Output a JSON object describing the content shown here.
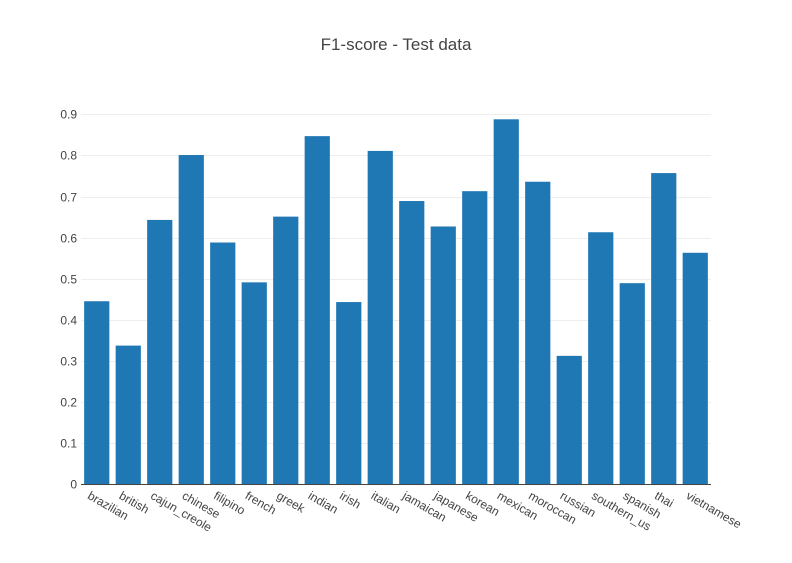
{
  "chart_data": {
    "type": "bar",
    "title": "F1-score - Test data",
    "xlabel": "",
    "ylabel": "",
    "categories": [
      "brazilian",
      "british",
      "cajun_creole",
      "chinese",
      "filipino",
      "french",
      "greek",
      "indian",
      "irish",
      "italian",
      "jamaican",
      "japanese",
      "korean",
      "mexican",
      "moroccan",
      "russian",
      "southern_us",
      "spanish",
      "thai",
      "vietnamese"
    ],
    "values": [
      0.445,
      0.337,
      0.643,
      0.801,
      0.588,
      0.491,
      0.651,
      0.847,
      0.443,
      0.811,
      0.689,
      0.627,
      0.713,
      0.888,
      0.736,
      0.312,
      0.613,
      0.489,
      0.757,
      0.563
    ],
    "yticks": [
      "0",
      "0.1",
      "0.2",
      "0.3",
      "0.4",
      "0.5",
      "0.6",
      "0.7",
      "0.8",
      "0.9"
    ],
    "ylim": [
      0,
      0.935
    ],
    "grid": true,
    "colors": {
      "bar": "#1f77b4",
      "grid": "#eeeeee",
      "text": "#444444"
    }
  }
}
